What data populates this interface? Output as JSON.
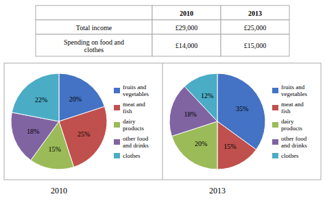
{
  "chart_data": [
    {
      "type": "table",
      "headers": [
        null,
        "2010",
        "2013"
      ],
      "rows": [
        [
          "Total income",
          "£29,000",
          "£25,000"
        ],
        [
          "Spending on food and\nclothes",
          "£14,000",
          "£15,000"
        ]
      ],
      "color": "#aaaaaa"
    },
    {
      "type": "pie",
      "title": "2010",
      "categories": [
        "fruits and\nvegetables",
        "meat and\nfish",
        "dairy\nproducts",
        "other food\nand drinks",
        "clothes"
      ],
      "values": [
        20,
        25,
        15,
        18,
        22
      ],
      "value_labels": [
        "20%",
        "25%",
        "15%",
        "18%",
        "22%"
      ],
      "colors": [
        "#4472c4",
        "#c0504d",
        "#9bbb59",
        "#8064a2",
        "#4bacc6"
      ],
      "data_labels": true,
      "legend": "right"
    },
    {
      "type": "pie",
      "title": "2013",
      "categories": [
        "fruits and\nvegetables",
        "meat and\nfish",
        "dairy\nproducts",
        "other food\nand drinks",
        "clothes"
      ],
      "values": [
        35,
        15,
        20,
        18,
        12
      ],
      "value_labels": [
        "35%",
        "15%",
        "20%",
        "18%",
        "12%"
      ],
      "colors": [
        "#4472c4",
        "#c0504d",
        "#9bbb59",
        "#8064a2",
        "#4bacc6"
      ],
      "data_labels": true,
      "legend": "right"
    }
  ]
}
